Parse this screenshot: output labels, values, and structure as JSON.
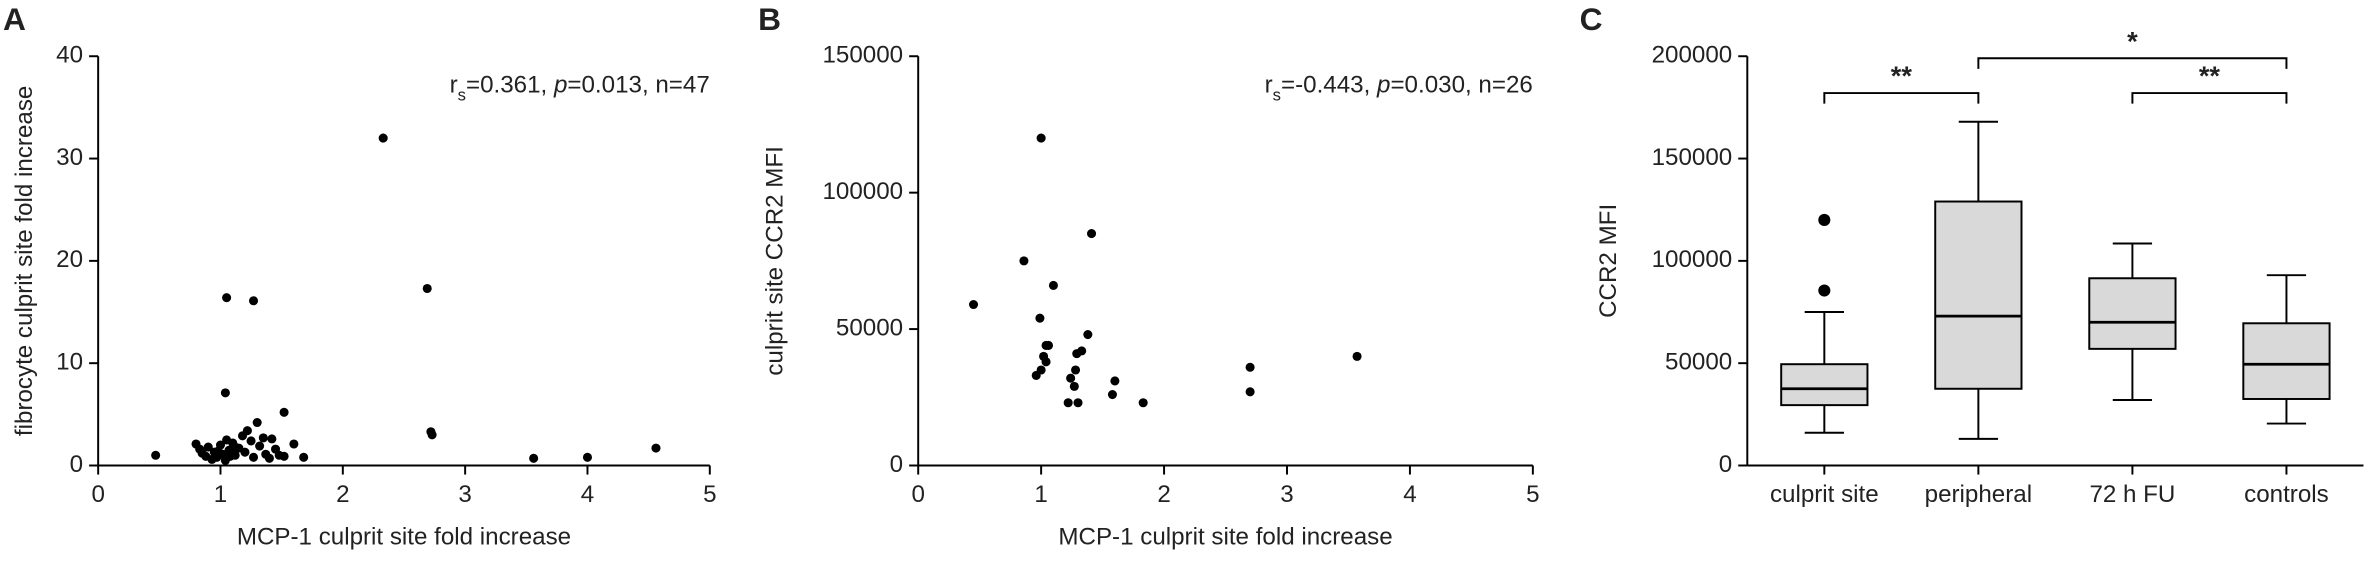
{
  "chart_data": [
    {
      "type": "scatter",
      "panel": "A",
      "x_label": "MCP-1 culprit site fold increase",
      "y_label": "fibrocyte culprit site fold increase",
      "annotation": [
        "r",
        "s",
        "=0.361, ",
        "p",
        "=0.013, n=47"
      ],
      "color": "#000000",
      "xlim": [
        0,
        5
      ],
      "xticks": [
        0,
        1,
        2,
        3,
        4,
        5
      ],
      "ylim": [
        0,
        40
      ],
      "yticks": [
        0,
        10,
        20,
        30,
        40
      ],
      "x": [
        0.47,
        2.33,
        2.69,
        2.72,
        2.73,
        3.56,
        4.0,
        4.56,
        1.05,
        1.27,
        1.04,
        1.52,
        0.8,
        0.83,
        0.85,
        0.88,
        0.9,
        0.93,
        0.95,
        0.97,
        1.0,
        1.02,
        1.04,
        1.05,
        1.07,
        1.08,
        1.1,
        1.12,
        1.15,
        1.18,
        1.2,
        1.22,
        1.25,
        1.27,
        1.3,
        1.32,
        1.35,
        1.37,
        1.4,
        1.42,
        1.45,
        1.48,
        1.52,
        1.6,
        1.68,
        1.12,
        0.98
      ],
      "values": [
        1.0,
        32,
        17.3,
        3.3,
        3.0,
        0.7,
        0.8,
        1.7,
        16.4,
        16.1,
        7.1,
        5.2,
        2.1,
        1.6,
        1.2,
        0.9,
        1.8,
        0.6,
        1.3,
        0.8,
        2.0,
        1.1,
        0.5,
        2.5,
        1.5,
        0.9,
        2.2,
        1.0,
        1.7,
        2.9,
        1.3,
        3.4,
        2.4,
        0.8,
        4.2,
        1.9,
        2.7,
        1.1,
        0.7,
        2.6,
        1.6,
        1.0,
        0.9,
        2.1,
        0.8,
        1.8,
        1.4
      ]
    },
    {
      "type": "scatter",
      "panel": "B",
      "x_label": "MCP-1 culprit site fold increase",
      "y_label": "culprit site CCR2 MFI",
      "annotation": [
        "r",
        "s",
        "=-0.443, ",
        "p",
        "=0.030, n=26"
      ],
      "color": "#000000",
      "xlim": [
        0,
        5
      ],
      "xticks": [
        0,
        1,
        2,
        3,
        4,
        5
      ],
      "ylim": [
        0,
        150000
      ],
      "yticks": [
        0,
        50000,
        100000,
        150000
      ],
      "x": [
        0.45,
        0.86,
        1.0,
        0.99,
        1.04,
        1.06,
        1.04,
        1.1,
        1.41,
        1.38,
        1.29,
        1.28,
        1.33,
        1.27,
        1.22,
        1.3,
        1.58,
        1.6,
        1.83,
        2.7,
        2.7,
        3.57,
        0.96,
        1.0,
        1.02,
        1.24
      ],
      "values": [
        59000,
        75000,
        120000,
        54000,
        44000,
        44000,
        38000,
        66000,
        85000,
        48000,
        41000,
        35000,
        42000,
        29000,
        23000,
        23000,
        26000,
        31000,
        23000,
        36000,
        27000,
        40000,
        33000,
        35000,
        40000,
        32000
      ]
    },
    {
      "type": "box",
      "panel": "C",
      "y_label": "CCR2 MFI",
      "categories": [
        "culprit site",
        "peripheral",
        "72 h FU",
        "controls"
      ],
      "color": "#d9d9d9",
      "ylim": [
        0,
        200000
      ],
      "yticks": [
        0,
        50000,
        100000,
        150000,
        200000
      ],
      "boxes": [
        {
          "min": 16000,
          "q1": 29500,
          "median": 37500,
          "q3": 49500,
          "max": 75000,
          "outliers": [
            85500,
            120000
          ]
        },
        {
          "min": 13000,
          "q1": 37500,
          "median": 73000,
          "q3": 129000,
          "max": 168000,
          "outliers": []
        },
        {
          "min": 32000,
          "q1": 57000,
          "median": 70000,
          "q3": 91500,
          "max": 108500,
          "outliers": []
        },
        {
          "min": 20500,
          "q1": 32500,
          "median": 49500,
          "q3": 69500,
          "max": 93000,
          "outliers": []
        }
      ],
      "brackets": [
        {
          "from": 0,
          "to": 1,
          "label": "**",
          "y": 182000
        },
        {
          "from": 1,
          "to": 3,
          "label": "*",
          "y": 199000
        },
        {
          "from": 2,
          "to": 3,
          "label": "**",
          "y": 182000
        }
      ]
    }
  ]
}
